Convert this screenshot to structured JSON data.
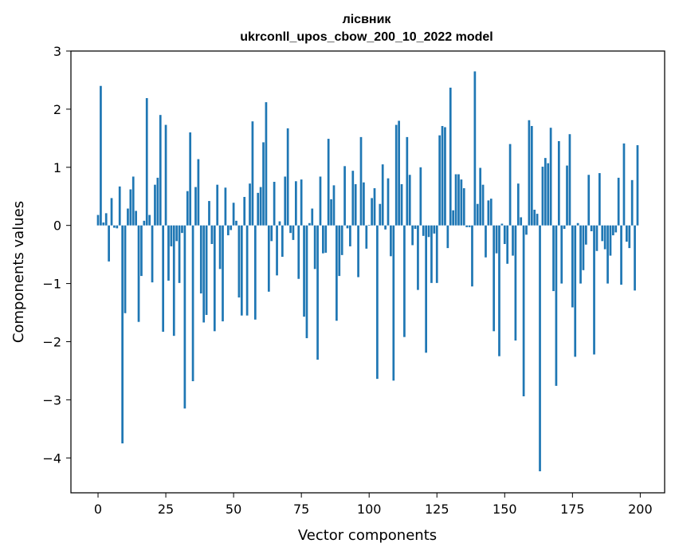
{
  "chart_data": {
    "type": "bar",
    "title": "лісвник",
    "subtitle": "ukrconll_upos_cbow_200_10_2022 model",
    "xlabel": "Vector components",
    "ylabel": "Components values",
    "xlim": [
      -10,
      209
    ],
    "ylim": [
      -4.6,
      3.0
    ],
    "xticks": [
      0,
      25,
      50,
      75,
      100,
      125,
      150,
      175,
      200
    ],
    "yticks": [
      -4,
      -3,
      -2,
      -1,
      0,
      1,
      2,
      3
    ],
    "ytick_labels": [
      "−4",
      "−3",
      "−2",
      "−1",
      "0",
      "1",
      "2",
      "3"
    ],
    "grid": false,
    "bar_color": "#1f77b4",
    "values": [
      0.18,
      2.4,
      0.05,
      0.21,
      -0.62,
      0.47,
      -0.04,
      -0.05,
      0.67,
      -3.75,
      -1.51,
      0.29,
      0.62,
      0.84,
      0.25,
      -1.66,
      -0.87,
      0.08,
      2.19,
      0.18,
      -0.98,
      0.7,
      0.82,
      1.9,
      -1.83,
      1.73,
      -0.95,
      -0.36,
      -1.9,
      -0.27,
      -0.99,
      -0.13,
      -3.15,
      0.59,
      1.6,
      -2.68,
      0.66,
      1.14,
      -1.17,
      -1.67,
      -1.54,
      0.42,
      -0.32,
      -1.82,
      0.7,
      -0.75,
      -1.65,
      0.65,
      -0.17,
      -0.08,
      0.39,
      0.08,
      -1.24,
      -1.55,
      0.49,
      -1.55,
      0.72,
      1.79,
      -1.62,
      0.56,
      0.66,
      1.43,
      2.12,
      -1.14,
      -0.27,
      0.75,
      -0.86,
      0.07,
      -0.54,
      0.84,
      1.67,
      -0.13,
      -0.25,
      0.76,
      -0.92,
      0.79,
      -1.57,
      -1.94,
      0.04,
      0.29,
      -0.75,
      -2.31,
      0.84,
      -0.48,
      -0.47,
      1.49,
      0.45,
      0.69,
      -1.64,
      -0.87,
      -0.51,
      1.02,
      -0.05,
      -0.36,
      0.94,
      0.71,
      -0.89,
      1.52,
      0.74,
      -0.4,
      0.01,
      0.47,
      0.64,
      -2.64,
      0.37,
      1.05,
      -0.07,
      0.81,
      -0.53,
      -2.67,
      1.73,
      1.8,
      0.71,
      -1.92,
      1.52,
      0.87,
      -0.34,
      -0.06,
      -1.11,
      1.0,
      -0.18,
      -2.19,
      -0.2,
      -0.99,
      -0.14,
      -0.99,
      1.55,
      1.71,
      1.69,
      -0.39,
      2.37,
      0.26,
      0.88,
      0.88,
      0.79,
      0.64,
      -0.03,
      -0.03,
      -1.05,
      2.65,
      0.37,
      0.99,
      0.7,
      -0.55,
      0.43,
      0.46,
      -1.82,
      -0.48,
      -2.25,
      0.03,
      -0.32,
      -0.66,
      1.4,
      -0.52,
      -1.98,
      0.72,
      0.14,
      -2.94,
      -0.16,
      1.81,
      1.71,
      0.27,
      0.2,
      -4.23,
      1.01,
      1.16,
      1.07,
      1.68,
      -1.13,
      -2.76,
      1.45,
      -1.0,
      -0.06,
      1.03,
      1.57,
      -1.41,
      -2.26,
      0.04,
      -1.0,
      -0.77,
      -0.33,
      0.87,
      -0.1,
      -2.22,
      -0.44,
      0.9,
      -0.27,
      -0.41,
      -1.0,
      -0.52,
      -0.17,
      -0.12,
      0.82,
      -1.02,
      1.41,
      -0.28,
      -0.39,
      0.78,
      -1.12,
      1.38
    ]
  }
}
